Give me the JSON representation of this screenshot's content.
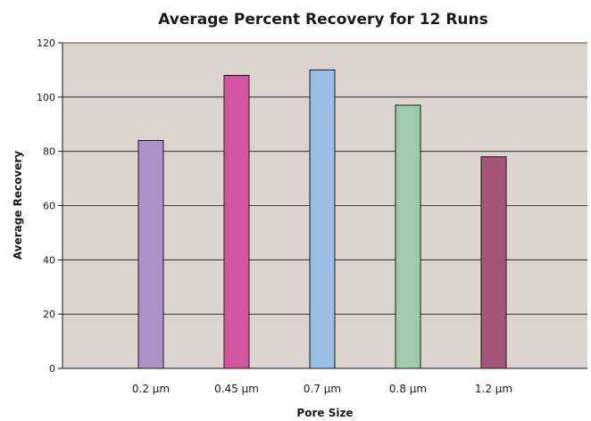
{
  "chart_data": {
    "type": "bar",
    "title": "Average Percent Recovery for 12 Runs",
    "xlabel": "Pore Size",
    "ylabel": "Average Recovery",
    "categories": [
      "0.2 µm",
      "0.45 µm",
      "0.7 µm",
      "0.8 µm",
      "1.2 µm"
    ],
    "values": [
      84,
      108,
      110,
      97,
      78
    ],
    "colors": [
      "#ab93c7",
      "#d4559f",
      "#98bfe6",
      "#9ecbab",
      "#a5547a"
    ],
    "ylim": [
      0,
      120
    ],
    "yticks": [
      0,
      20,
      40,
      60,
      80,
      100,
      120
    ],
    "plot_background": "#ddd3cf",
    "grid": true,
    "legend": "none"
  }
}
